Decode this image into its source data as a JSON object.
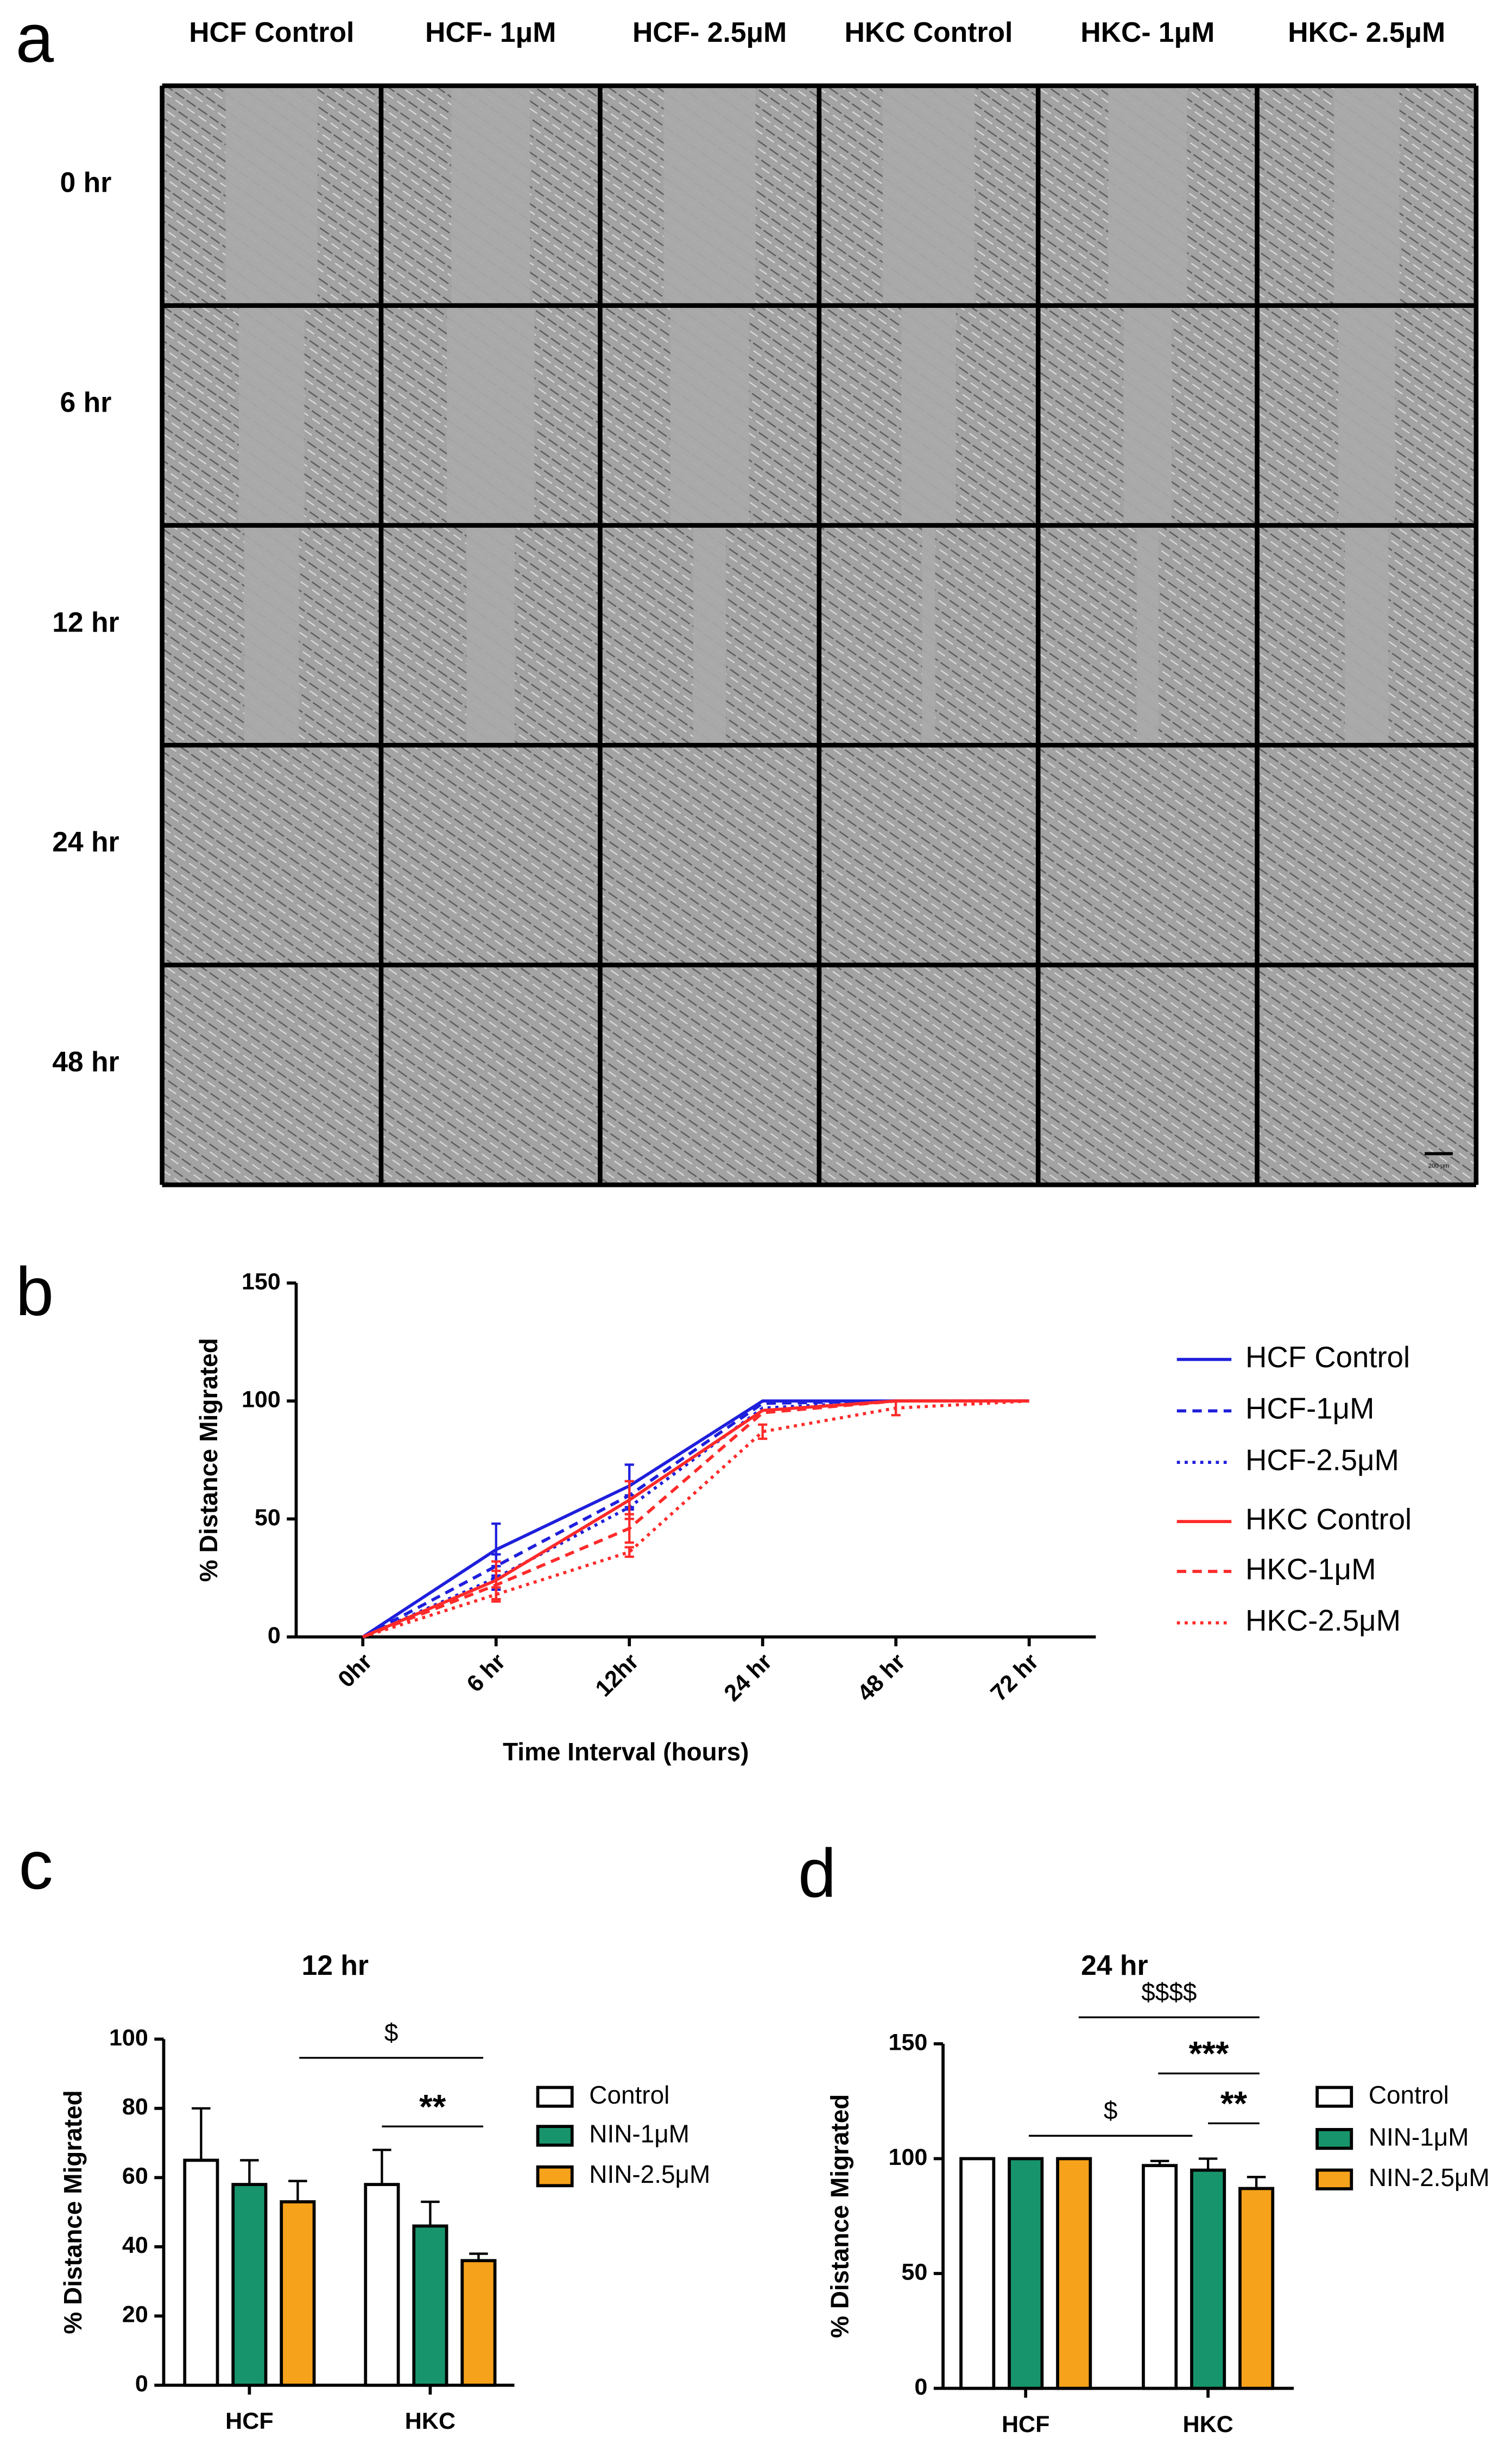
{
  "panel_a": {
    "label": "a",
    "columns": [
      "HCF Control",
      "HCF- 1μM",
      "HCF- 2.5μM",
      "HKC Control",
      "HKC- 1μM",
      "HKC- 2.5μM"
    ],
    "rows": [
      "0 hr",
      "6 hr",
      "12 hr",
      "24 hr",
      "48 hr"
    ],
    "scale_bar": "200 μm"
  },
  "chart_data": [
    {
      "type": "line",
      "panel_label": "b",
      "x_label": "Time Interval (hours)",
      "y_label": "% Distance Migrated",
      "categories": [
        "0hr",
        "6 hr",
        "12hr",
        "24 hr",
        "48 hr",
        "72 hr"
      ],
      "ylim": [
        0,
        150
      ],
      "yticks": [
        0,
        50,
        100,
        150
      ],
      "series": [
        {
          "name": "HCF Control",
          "color": "#1f1fdc",
          "dash": "solid",
          "values": [
            0,
            37,
            64,
            100,
            100,
            100
          ],
          "errors": [
            0,
            11,
            9,
            0,
            0,
            0
          ]
        },
        {
          "name": "HCF-1μM",
          "color": "#1f1fdc",
          "dash": "dashed",
          "values": [
            0,
            30,
            60,
            99,
            100,
            100
          ],
          "errors": [
            0,
            5,
            6,
            0,
            0,
            0
          ]
        },
        {
          "name": "HCF-2.5μM",
          "color": "#1f1fdc",
          "dash": "dotted",
          "values": [
            0,
            25,
            55,
            97,
            100,
            100
          ],
          "errors": [
            0,
            5,
            5,
            0,
            0,
            0
          ]
        },
        {
          "name": "HKC Control",
          "color": "#ff2a2a",
          "dash": "solid",
          "values": [
            0,
            24,
            58,
            96,
            100,
            100
          ],
          "errors": [
            0,
            8,
            8,
            0,
            0,
            0
          ]
        },
        {
          "name": "HKC-1μM",
          "color": "#ff2a2a",
          "dash": "dashed",
          "values": [
            0,
            22,
            46,
            95,
            100,
            100
          ],
          "errors": [
            0,
            6,
            6,
            0,
            0,
            0
          ]
        },
        {
          "name": "HKC-2.5μM",
          "color": "#ff2a2a",
          "dash": "dotted",
          "values": [
            0,
            18,
            36,
            87,
            97,
            100
          ],
          "errors": [
            0,
            3,
            2,
            3,
            3,
            0
          ]
        }
      ]
    },
    {
      "type": "bar",
      "panel_label": "c",
      "title": "12 hr",
      "y_label": "% Distance Migrated",
      "categories": [
        "HCF",
        "HKC"
      ],
      "ylim": [
        0,
        100
      ],
      "yticks": [
        0,
        20,
        40,
        60,
        80,
        100
      ],
      "series": [
        {
          "name": "Control",
          "color": "#ffffff",
          "values": [
            65,
            58
          ],
          "errors": [
            15,
            10
          ]
        },
        {
          "name": "NIN-1μM",
          "color": "#17946c",
          "values": [
            58,
            46
          ],
          "errors": [
            7,
            7
          ]
        },
        {
          "name": "NIN-2.5μM",
          "color": "#f7a21b",
          "values": [
            53,
            36
          ],
          "errors": [
            6,
            2
          ]
        }
      ],
      "annotations": [
        "$",
        "**"
      ]
    },
    {
      "type": "bar",
      "panel_label": "d",
      "title": "24 hr",
      "y_label": "% Distance Migrated",
      "categories": [
        "HCF",
        "HKC"
      ],
      "ylim": [
        0,
        150
      ],
      "yticks": [
        0,
        50,
        100,
        150
      ],
      "series": [
        {
          "name": "Control",
          "color": "#ffffff",
          "values": [
            100,
            97
          ],
          "errors": [
            0,
            2
          ]
        },
        {
          "name": "NIN-1μM",
          "color": "#17946c",
          "values": [
            100,
            95
          ],
          "errors": [
            0,
            5
          ]
        },
        {
          "name": "NIN-2.5μM",
          "color": "#f7a21b",
          "values": [
            100,
            87
          ],
          "errors": [
            0,
            5
          ]
        }
      ],
      "annotations": [
        "$$$$",
        "***",
        "**",
        "$"
      ]
    }
  ]
}
